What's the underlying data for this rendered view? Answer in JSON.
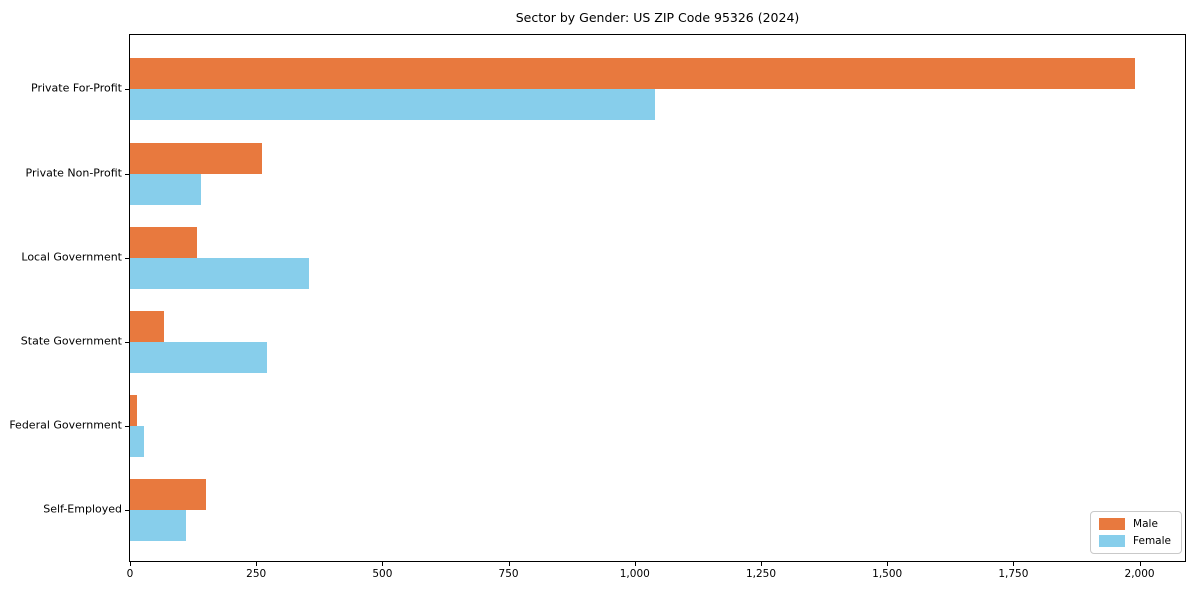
{
  "chart_data": {
    "type": "bar",
    "orientation": "horizontal",
    "title": "Sector by Gender: US ZIP Code 95326 (2024)",
    "categories": [
      "Private For-Profit",
      "Private Non-Profit",
      "Local Government",
      "State Government",
      "Federal Government",
      "Self-Employed"
    ],
    "series": [
      {
        "name": "Male",
        "color": "#e8793e",
        "values": [
          1990,
          262,
          132,
          68,
          14,
          150
        ]
      },
      {
        "name": "Female",
        "color": "#87ceeb",
        "values": [
          1040,
          140,
          355,
          272,
          28,
          111
        ]
      }
    ],
    "xlabel": "",
    "ylabel": "",
    "xlim": [
      0,
      2090
    ],
    "xticks": {
      "values": [
        0,
        250,
        500,
        750,
        1000,
        1250,
        1500,
        1750,
        2000
      ],
      "labels": [
        "0",
        "250",
        "500",
        "750",
        "1,000",
        "1,250",
        "1,500",
        "1,750",
        "2,000"
      ]
    },
    "grid": false,
    "legend": {
      "position": "lower right",
      "entries": [
        "Male",
        "Female"
      ]
    }
  }
}
